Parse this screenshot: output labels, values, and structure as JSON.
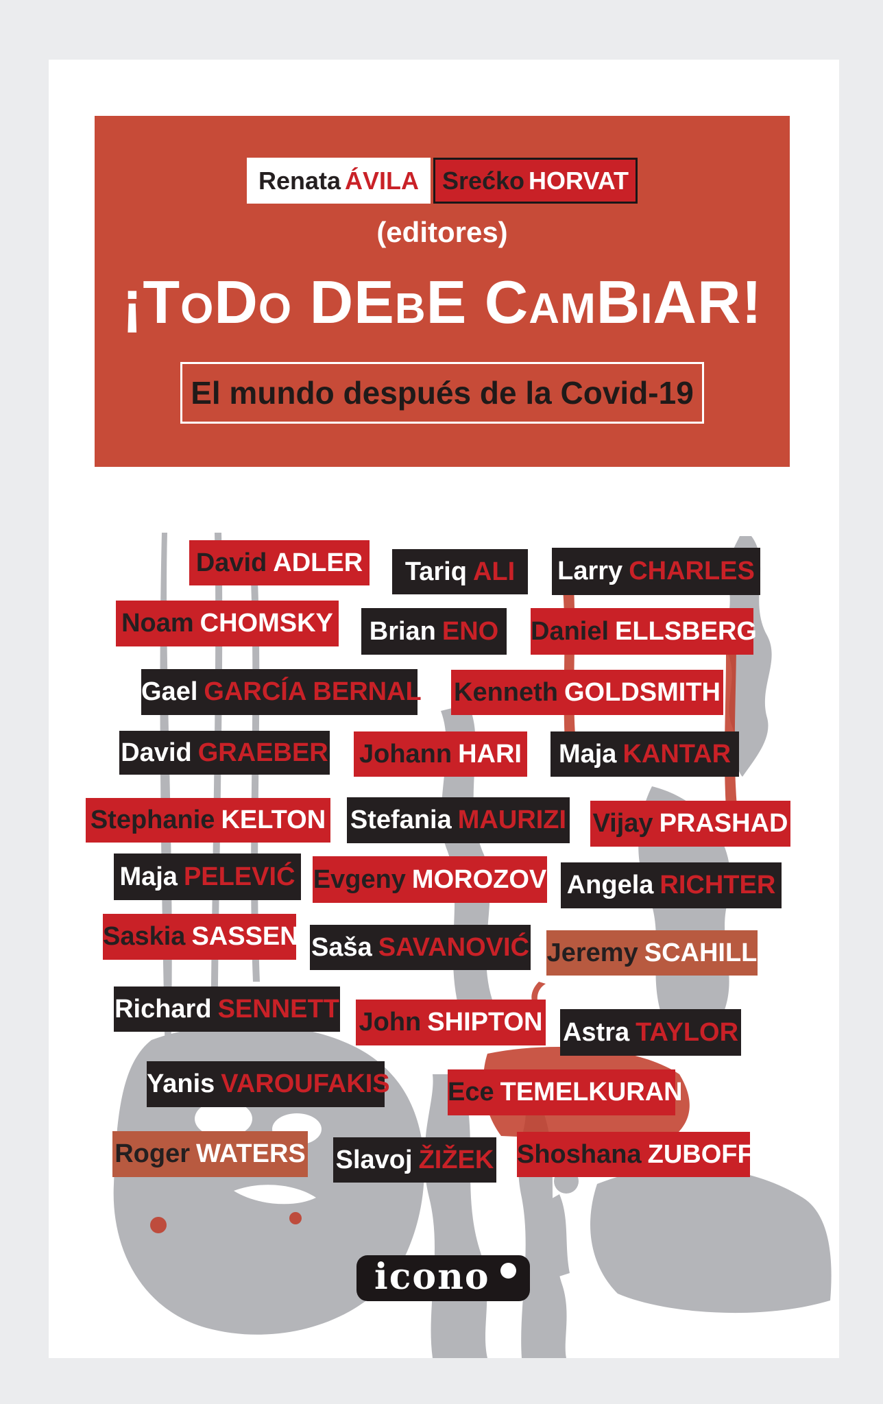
{
  "cover": {
    "editors": [
      {
        "first": "Renata",
        "last": "ÁVILA"
      },
      {
        "first": "Srećko",
        "last": "HORVAT"
      }
    ],
    "editors_caption": "(editores)",
    "title": "¡ToDo DEbE CamBiAR!",
    "subtitle": "El mundo después de la Covid-19",
    "publisher": "icono"
  },
  "contributors": [
    {
      "first": "David",
      "last": "ADLER",
      "style": "red"
    },
    {
      "first": "Tariq",
      "last": "ALI",
      "style": "dark"
    },
    {
      "first": "Larry",
      "last": "CHARLES",
      "style": "dark"
    },
    {
      "first": "Noam",
      "last": "CHOMSKY",
      "style": "red"
    },
    {
      "first": "Brian",
      "last": "ENO",
      "style": "dark"
    },
    {
      "first": "Daniel",
      "last": "ELLSBERG",
      "style": "red"
    },
    {
      "first": "Gael",
      "last": "GARCÍA BERNAL",
      "style": "dark"
    },
    {
      "first": "Kenneth",
      "last": "GOLDSMITH",
      "style": "red"
    },
    {
      "first": "David",
      "last": "GRAEBER",
      "style": "dark"
    },
    {
      "first": "Johann",
      "last": "HARI",
      "style": "red"
    },
    {
      "first": "Maja",
      "last": "KANTAR",
      "style": "dark"
    },
    {
      "first": "Stephanie",
      "last": "KELTON",
      "style": "red"
    },
    {
      "first": "Stefania",
      "last": "MAURIZI",
      "style": "dark"
    },
    {
      "first": "Vijay",
      "last": "PRASHAD",
      "style": "red"
    },
    {
      "first": "Maja",
      "last": "PELEVIĆ",
      "style": "dark"
    },
    {
      "first": "Evgeny",
      "last": "MOROZOV",
      "style": "red"
    },
    {
      "first": "Angela",
      "last": "RICHTER",
      "style": "dark"
    },
    {
      "first": "Saskia",
      "last": "SASSEN",
      "style": "red"
    },
    {
      "first": "Saša",
      "last": "SAVANOVIĆ",
      "style": "dark"
    },
    {
      "first": "Jeremy",
      "last": "SCAHILL",
      "style": "brick"
    },
    {
      "first": "Richard",
      "last": "SENNETT",
      "style": "dark"
    },
    {
      "first": "John",
      "last": "SHIPTON",
      "style": "red"
    },
    {
      "first": "Astra",
      "last": "TAYLOR",
      "style": "dark"
    },
    {
      "first": "Yanis",
      "last": "VAROUFAKIS",
      "style": "dark"
    },
    {
      "first": "Ece",
      "last": "TEMELKURAN",
      "style": "red"
    },
    {
      "first": "Roger",
      "last": "WATERS",
      "style": "brick"
    },
    {
      "first": "Slavoj",
      "last": "ŽIŽEK",
      "style": "dark"
    },
    {
      "first": "Shoshana",
      "last": "ZUBOFF",
      "style": "red"
    }
  ],
  "colors": {
    "canvas_bg": "#ebecee",
    "page_bg": "#ffffff",
    "banner_red": "#c74b38",
    "tag_red": "#c92127",
    "tag_dark": "#241f20",
    "tag_brick": "#b85a40",
    "text_dark": "#241f20",
    "text_white": "#ffffff",
    "illustration_gray": "#b4b5b9",
    "accent_drip_red": "#bf3a27"
  }
}
